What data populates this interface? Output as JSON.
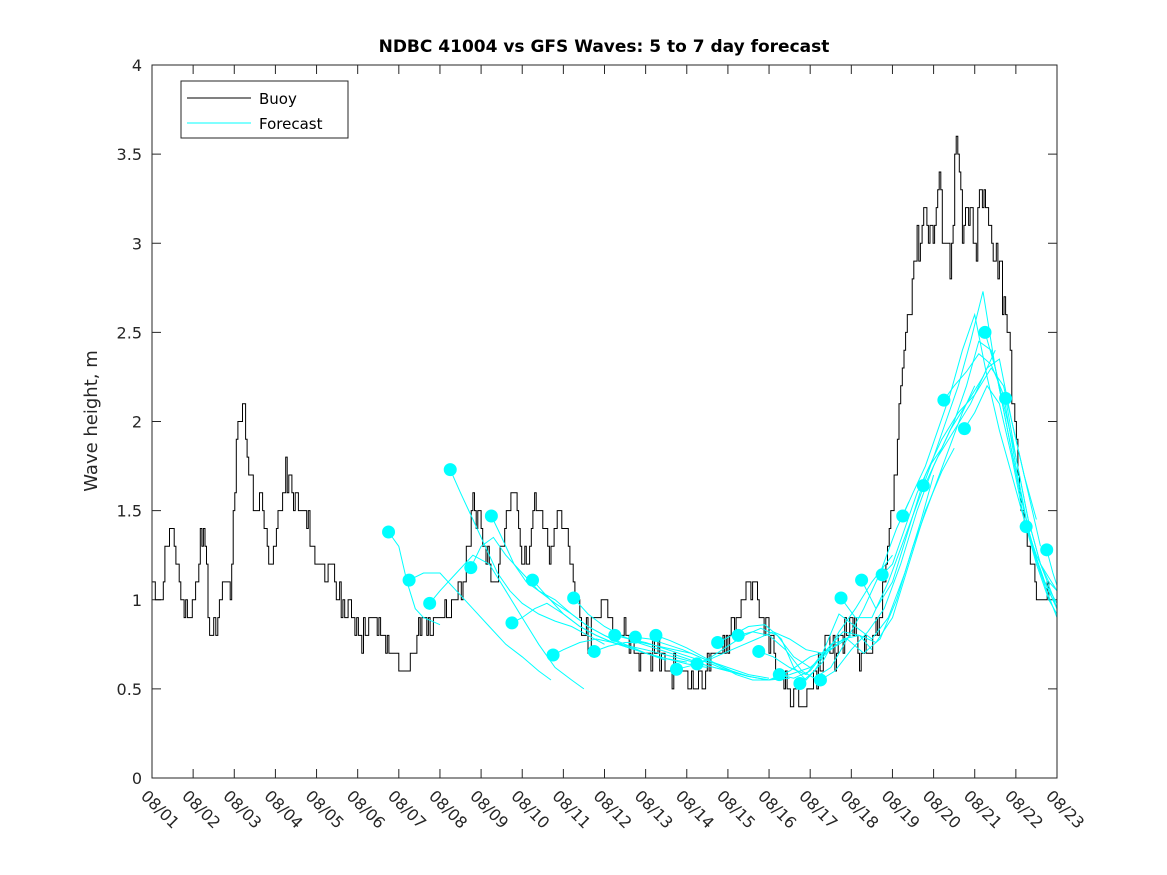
{
  "chart_data": {
    "type": "line",
    "title": "NDBC 41004 vs GFS Waves: 5 to 7 day forecast",
    "xlabel": "",
    "ylabel": "Wave height, m",
    "xlim": [
      0,
      22
    ],
    "ylim": [
      0,
      4
    ],
    "yticks": [
      0,
      0.5,
      1,
      1.5,
      2,
      2.5,
      3,
      3.5,
      4
    ],
    "ytick_labels": [
      "0",
      "0.5",
      "1",
      "1.5",
      "2",
      "2.5",
      "3",
      "3.5",
      "4"
    ],
    "xtick_labels": [
      "08/01",
      "08/02",
      "08/03",
      "08/04",
      "08/05",
      "08/06",
      "08/07",
      "08/08",
      "08/09",
      "08/10",
      "08/11",
      "08/12",
      "08/13",
      "08/14",
      "08/15",
      "08/16",
      "08/17",
      "08/18",
      "08/19",
      "08/20",
      "08/21",
      "08/22",
      "08/23"
    ],
    "legend": {
      "position": "top-left",
      "entries": [
        "Buoy",
        "Forecast"
      ]
    },
    "colors": {
      "buoy": "#000000",
      "forecast": "#00ffff",
      "axes": "#262626"
    },
    "buoy": {
      "name": "Buoy",
      "x": [
        0,
        0.2,
        0.35,
        0.5,
        0.7,
        0.9,
        1.1,
        1.25,
        1.4,
        1.5,
        1.6,
        1.75,
        1.9,
        2.05,
        2.2,
        2.35,
        2.5,
        2.65,
        2.8,
        2.95,
        3.1,
        3.25,
        3.4,
        3.6,
        3.8,
        4.0,
        4.2,
        4.4,
        4.6,
        4.85,
        5.1,
        5.35,
        5.6,
        5.8,
        6.0,
        6.2,
        6.4,
        6.6,
        6.8,
        7.0,
        7.2,
        7.4,
        7.6,
        7.8,
        8.0,
        8.2,
        8.35,
        8.5,
        8.65,
        8.8,
        8.95,
        9.1,
        9.3,
        9.5,
        9.7,
        9.85,
        10.0,
        10.2,
        10.4,
        10.6,
        10.8,
        11.0,
        11.2,
        11.4,
        11.6,
        11.8,
        12.0,
        12.3,
        12.6,
        12.9,
        13.2,
        13.5,
        13.8,
        14.0,
        14.2,
        14.4,
        14.6,
        14.8,
        15.0,
        15.2,
        15.4,
        15.6,
        15.8,
        16.0,
        16.2,
        16.4,
        16.6,
        16.8,
        17.0,
        17.2,
        17.4,
        17.6,
        17.8,
        18.0,
        18.2,
        18.4,
        18.6,
        18.8,
        18.95,
        19.1,
        19.25,
        19.4,
        19.55,
        19.7,
        19.85,
        20.0,
        20.15,
        20.3,
        20.45,
        20.6,
        20.75,
        20.9,
        21.05,
        21.2,
        21.35,
        21.5,
        21.65,
        21.8,
        21.9
      ],
      "y": [
        1.1,
        1.0,
        1.3,
        1.4,
        1.0,
        0.9,
        1.1,
        1.5,
        0.8,
        0.8,
        0.9,
        1.1,
        1.0,
        1.9,
        2.1,
        1.7,
        1.5,
        1.6,
        1.3,
        1.2,
        1.5,
        1.7,
        1.6,
        1.5,
        1.4,
        1.2,
        1.2,
        1.1,
        1.0,
        0.9,
        0.8,
        0.9,
        0.8,
        0.7,
        0.6,
        0.6,
        0.8,
        0.9,
        0.8,
        1.0,
        0.9,
        1.0,
        1.2,
        1.5,
        1.4,
        1.2,
        1.1,
        1.3,
        1.5,
        1.6,
        1.3,
        1.2,
        1.6,
        1.4,
        1.2,
        1.5,
        1.4,
        1.2,
        0.9,
        0.8,
        0.9,
        1.0,
        0.9,
        0.8,
        0.8,
        0.7,
        0.7,
        0.7,
        0.6,
        0.6,
        0.5,
        0.6,
        0.7,
        0.8,
        0.9,
        1.0,
        1.1,
        0.9,
        0.8,
        0.6,
        0.5,
        0.4,
        0.4,
        0.5,
        0.6,
        0.8,
        0.7,
        0.8,
        0.9,
        0.7,
        0.7,
        0.8,
        1.1,
        1.5,
        2.2,
        2.7,
        3.0,
        3.2,
        3.0,
        3.3,
        3.1,
        2.9,
        3.6,
        3.0,
        3.2,
        2.9,
        3.3,
        3.1,
        3.0,
        2.9,
        2.6,
        2.2,
        1.7,
        1.4,
        1.2,
        1.1,
        1.0,
        1.05,
        1.0
      ],
      "jitter": 0.15
    },
    "series": [
      {
        "name": "Forecast",
        "x": [
          5.75,
          6.0,
          6.2,
          6.4,
          6.6,
          6.8,
          7.0
        ],
        "y": [
          1.38,
          1.3,
          1.1,
          0.95,
          0.9,
          0.88,
          0.86
        ]
      },
      {
        "name": "Forecast",
        "x": [
          6.25,
          6.6,
          7.0,
          7.4,
          7.8,
          8.2,
          8.6,
          9.0,
          9.4,
          9.7
        ],
        "y": [
          1.11,
          1.15,
          1.15,
          1.05,
          0.95,
          0.85,
          0.75,
          0.68,
          0.6,
          0.55
        ]
      },
      {
        "name": "Forecast",
        "x": [
          6.75,
          7.0,
          7.4,
          7.8,
          8.2,
          8.6,
          9.0,
          9.4,
          9.8,
          10.2,
          10.5
        ],
        "y": [
          0.98,
          1.05,
          1.15,
          1.25,
          1.2,
          1.05,
          0.9,
          0.75,
          0.62,
          0.55,
          0.5
        ]
      },
      {
        "name": "Forecast",
        "x": [
          7.25,
          7.5,
          7.8,
          8.1,
          8.4,
          8.7,
          9.0,
          9.4,
          9.8,
          10.2,
          10.6,
          11.0
        ],
        "y": [
          1.73,
          1.6,
          1.45,
          1.3,
          1.15,
          1.05,
          0.98,
          0.92,
          0.88,
          0.85,
          0.8,
          0.75
        ]
      },
      {
        "name": "Forecast",
        "x": [
          7.75,
          8.0,
          8.3,
          8.6,
          9.0,
          9.4,
          9.8,
          10.2,
          10.6,
          11.0,
          11.5,
          12.0
        ],
        "y": [
          1.18,
          1.3,
          1.35,
          1.25,
          1.15,
          1.05,
          1.0,
          0.92,
          0.85,
          0.8,
          0.74,
          0.7
        ]
      },
      {
        "name": "Forecast",
        "x": [
          8.25,
          8.5,
          8.8,
          9.1,
          9.4,
          9.8,
          10.2,
          10.6,
          11.0,
          11.5,
          12.0,
          12.5
        ],
        "y": [
          1.47,
          1.35,
          1.2,
          1.1,
          1.05,
          0.98,
          0.92,
          0.85,
          0.8,
          0.75,
          0.7,
          0.66
        ]
      },
      {
        "name": "Forecast",
        "x": [
          8.75,
          9.0,
          9.3,
          9.6,
          10.0,
          10.4,
          10.8,
          11.2,
          11.6,
          12.0,
          12.5,
          13.0
        ],
        "y": [
          0.87,
          0.9,
          0.95,
          0.98,
          0.92,
          0.85,
          0.8,
          0.76,
          0.73,
          0.7,
          0.67,
          0.65
        ]
      },
      {
        "name": "Forecast",
        "x": [
          9.25,
          9.6,
          10.0,
          10.4,
          10.8,
          11.2,
          11.6,
          12.0,
          12.5,
          13.0,
          13.5
        ],
        "y": [
          1.11,
          1.02,
          0.92,
          0.85,
          0.8,
          0.76,
          0.73,
          0.7,
          0.67,
          0.64,
          0.62
        ]
      },
      {
        "name": "Forecast",
        "x": [
          9.75,
          10.0,
          10.4,
          10.8,
          11.2,
          11.6,
          12.0,
          12.5,
          13.0,
          13.5,
          14.0
        ],
        "y": [
          0.69,
          0.72,
          0.76,
          0.78,
          0.76,
          0.74,
          0.72,
          0.69,
          0.66,
          0.63,
          0.6
        ]
      },
      {
        "name": "Forecast",
        "x": [
          10.25,
          10.6,
          11.0,
          11.4,
          11.8,
          12.2,
          12.6,
          13.0,
          13.5,
          14.0,
          14.5
        ],
        "y": [
          1.01,
          0.92,
          0.85,
          0.8,
          0.76,
          0.73,
          0.7,
          0.67,
          0.63,
          0.6,
          0.57
        ]
      },
      {
        "name": "Forecast",
        "x": [
          10.75,
          11.1,
          11.5,
          11.9,
          12.3,
          12.7,
          13.1,
          13.5,
          14.0,
          14.5,
          15.0
        ],
        "y": [
          0.71,
          0.74,
          0.76,
          0.76,
          0.74,
          0.72,
          0.7,
          0.66,
          0.62,
          0.58,
          0.56
        ]
      },
      {
        "name": "Forecast",
        "x": [
          11.25,
          11.6,
          12.0,
          12.4,
          12.8,
          13.2,
          13.6,
          14.0,
          14.5,
          15.0,
          15.5
        ],
        "y": [
          0.8,
          0.78,
          0.76,
          0.73,
          0.7,
          0.67,
          0.64,
          0.6,
          0.57,
          0.55,
          0.56
        ]
      },
      {
        "name": "Forecast",
        "x": [
          11.75,
          12.1,
          12.5,
          12.9,
          13.3,
          13.7,
          14.1,
          14.5,
          15.0,
          15.5,
          16.0
        ],
        "y": [
          0.79,
          0.78,
          0.75,
          0.72,
          0.68,
          0.64,
          0.6,
          0.57,
          0.55,
          0.58,
          0.62
        ]
      },
      {
        "name": "Forecast",
        "x": [
          12.25,
          12.6,
          13.0,
          13.4,
          13.8,
          14.2,
          14.6,
          15.0,
          15.5,
          16.0,
          16.5
        ],
        "y": [
          0.8,
          0.77,
          0.73,
          0.68,
          0.63,
          0.58,
          0.55,
          0.55,
          0.6,
          0.68,
          0.72
        ]
      },
      {
        "name": "Forecast",
        "x": [
          12.75,
          13.1,
          13.5,
          13.9,
          14.3,
          14.7,
          15.1,
          15.5,
          15.9,
          16.3,
          16.7,
          17.0
        ],
        "y": [
          0.61,
          0.63,
          0.66,
          0.7,
          0.74,
          0.78,
          0.82,
          0.78,
          0.72,
          0.7,
          0.75,
          0.8
        ]
      },
      {
        "name": "Forecast",
        "x": [
          13.25,
          13.6,
          14.0,
          14.4,
          14.8,
          15.2,
          15.6,
          16.0,
          16.4,
          16.8,
          17.2,
          17.5
        ],
        "y": [
          0.64,
          0.68,
          0.74,
          0.8,
          0.84,
          0.8,
          0.68,
          0.62,
          0.7,
          0.78,
          0.8,
          0.72
        ]
      },
      {
        "name": "Forecast",
        "x": [
          13.75,
          14.1,
          14.5,
          14.9,
          15.3,
          15.6,
          15.9,
          16.3,
          16.7,
          17.1,
          17.5,
          18.0
        ],
        "y": [
          0.76,
          0.8,
          0.85,
          0.86,
          0.78,
          0.62,
          0.55,
          0.65,
          0.82,
          0.95,
          1.1,
          1.25
        ]
      },
      {
        "name": "Forecast",
        "x": [
          14.25,
          14.6,
          15.0,
          15.4,
          15.8,
          16.1,
          16.5,
          16.9,
          17.3,
          17.7,
          18.1,
          18.4
        ],
        "y": [
          0.8,
          0.82,
          0.8,
          0.72,
          0.6,
          0.56,
          0.62,
          0.78,
          0.95,
          1.15,
          1.4,
          1.55
        ]
      },
      {
        "name": "Forecast",
        "x": [
          14.75,
          15.1,
          15.5,
          15.9,
          16.3,
          16.7,
          17.1,
          17.5,
          17.9,
          18.3,
          18.7,
          19.0
        ],
        "y": [
          0.71,
          0.68,
          0.62,
          0.58,
          0.7,
          0.92,
          0.85,
          0.78,
          0.9,
          1.15,
          1.45,
          1.7
        ]
      },
      {
        "name": "Forecast",
        "x": [
          15.25,
          15.6,
          16.0,
          16.4,
          16.8,
          17.2,
          17.6,
          18.0,
          18.4,
          18.8,
          19.2,
          19.5
        ],
        "y": [
          0.58,
          0.56,
          0.6,
          0.72,
          0.82,
          0.8,
          0.76,
          0.9,
          1.2,
          1.5,
          1.72,
          1.85
        ]
      },
      {
        "name": "Forecast",
        "x": [
          15.75,
          16.1,
          16.5,
          16.9,
          17.3,
          17.7,
          18.1,
          18.5,
          18.9,
          19.3,
          19.7,
          20.0
        ],
        "y": [
          0.53,
          0.6,
          0.75,
          0.78,
          0.7,
          0.78,
          1.0,
          1.3,
          1.55,
          1.8,
          2.05,
          2.2
        ]
      },
      {
        "name": "Forecast",
        "x": [
          16.25,
          16.6,
          17.0,
          17.4,
          17.8,
          18.2,
          18.6,
          19.0,
          19.4,
          19.8,
          20.2,
          20.5
        ],
        "y": [
          0.55,
          0.6,
          0.72,
          0.82,
          0.95,
          1.2,
          1.5,
          1.75,
          1.95,
          2.1,
          2.25,
          2.4
        ]
      },
      {
        "name": "Forecast",
        "x": [
          16.75,
          17.1,
          17.5,
          17.9,
          18.3,
          18.7,
          19.1,
          19.5,
          19.9,
          20.3,
          20.6,
          20.9,
          21.2,
          21.5
        ],
        "y": [
          1.01,
          0.9,
          0.9,
          1.1,
          1.35,
          1.6,
          1.8,
          1.95,
          2.1,
          2.3,
          2.35,
          2.0,
          1.7,
          1.45
        ]
      },
      {
        "name": "Forecast",
        "x": [
          17.25,
          17.6,
          18.0,
          18.4,
          18.8,
          19.2,
          19.6,
          20.0,
          20.4,
          20.7,
          21.0,
          21.3,
          21.6
        ],
        "y": [
          1.11,
          0.95,
          1.1,
          1.4,
          1.7,
          1.9,
          2.05,
          2.15,
          2.3,
          2.2,
          1.9,
          1.6,
          1.3
        ]
      },
      {
        "name": "Forecast",
        "x": [
          17.75,
          18.0,
          18.3,
          18.6,
          18.9,
          19.2,
          19.5,
          19.8,
          20.1,
          20.4,
          20.7,
          21.0,
          21.3,
          21.6,
          22.0
        ],
        "y": [
          1.14,
          1.2,
          1.4,
          1.6,
          1.75,
          1.85,
          2.0,
          2.2,
          2.45,
          2.4,
          2.1,
          1.8,
          1.45,
          1.2,
          1.05
        ]
      },
      {
        "name": "Forecast",
        "x": [
          18.25,
          18.5,
          18.8,
          19.1,
          19.4,
          19.7,
          20.0,
          20.3,
          20.6,
          20.9,
          21.2,
          21.5,
          21.8,
          22.0
        ],
        "y": [
          1.47,
          1.6,
          1.75,
          1.95,
          2.15,
          2.4,
          2.6,
          2.25,
          1.95,
          1.7,
          1.45,
          1.25,
          1.1,
          1.05
        ]
      },
      {
        "name": "Forecast",
        "x": [
          18.75,
          19.0,
          19.3,
          19.6,
          19.9,
          20.2,
          20.5,
          20.8,
          21.1,
          21.4,
          21.7,
          22.0
        ],
        "y": [
          1.64,
          1.8,
          2.0,
          2.2,
          2.45,
          2.73,
          2.3,
          1.95,
          1.6,
          1.3,
          1.1,
          0.95
        ]
      },
      {
        "name": "Forecast",
        "x": [
          19.25,
          19.5,
          19.8,
          20.1,
          20.4,
          20.7,
          21.0,
          21.3,
          21.6,
          21.9,
          22.0
        ],
        "y": [
          2.12,
          2.2,
          2.28,
          2.38,
          2.32,
          2.15,
          1.75,
          1.4,
          1.15,
          1.0,
          0.95
        ]
      },
      {
        "name": "Forecast",
        "x": [
          19.75,
          20.0,
          20.3,
          20.6,
          20.9,
          21.2,
          21.5,
          21.8,
          22.0
        ],
        "y": [
          1.96,
          2.05,
          2.2,
          2.1,
          1.8,
          1.45,
          1.2,
          1.0,
          0.92
        ]
      },
      {
        "name": "Forecast",
        "x": [
          20.25,
          20.5,
          20.8,
          21.1,
          21.4,
          21.7,
          22.0
        ],
        "y": [
          2.5,
          2.3,
          1.95,
          1.6,
          1.3,
          1.1,
          0.98
        ]
      },
      {
        "name": "Forecast",
        "x": [
          20.75,
          21.0,
          21.3,
          21.6,
          21.9,
          22.0
        ],
        "y": [
          2.13,
          1.8,
          1.45,
          1.2,
          1.02,
          0.95
        ]
      },
      {
        "name": "Forecast",
        "x": [
          21.25,
          21.5,
          21.75,
          22.0
        ],
        "y": [
          1.41,
          1.22,
          1.05,
          0.9
        ]
      },
      {
        "name": "Forecast",
        "x": [
          21.75,
          21.9,
          22.0
        ],
        "y": [
          1.28,
          1.15,
          1.08
        ]
      }
    ]
  }
}
